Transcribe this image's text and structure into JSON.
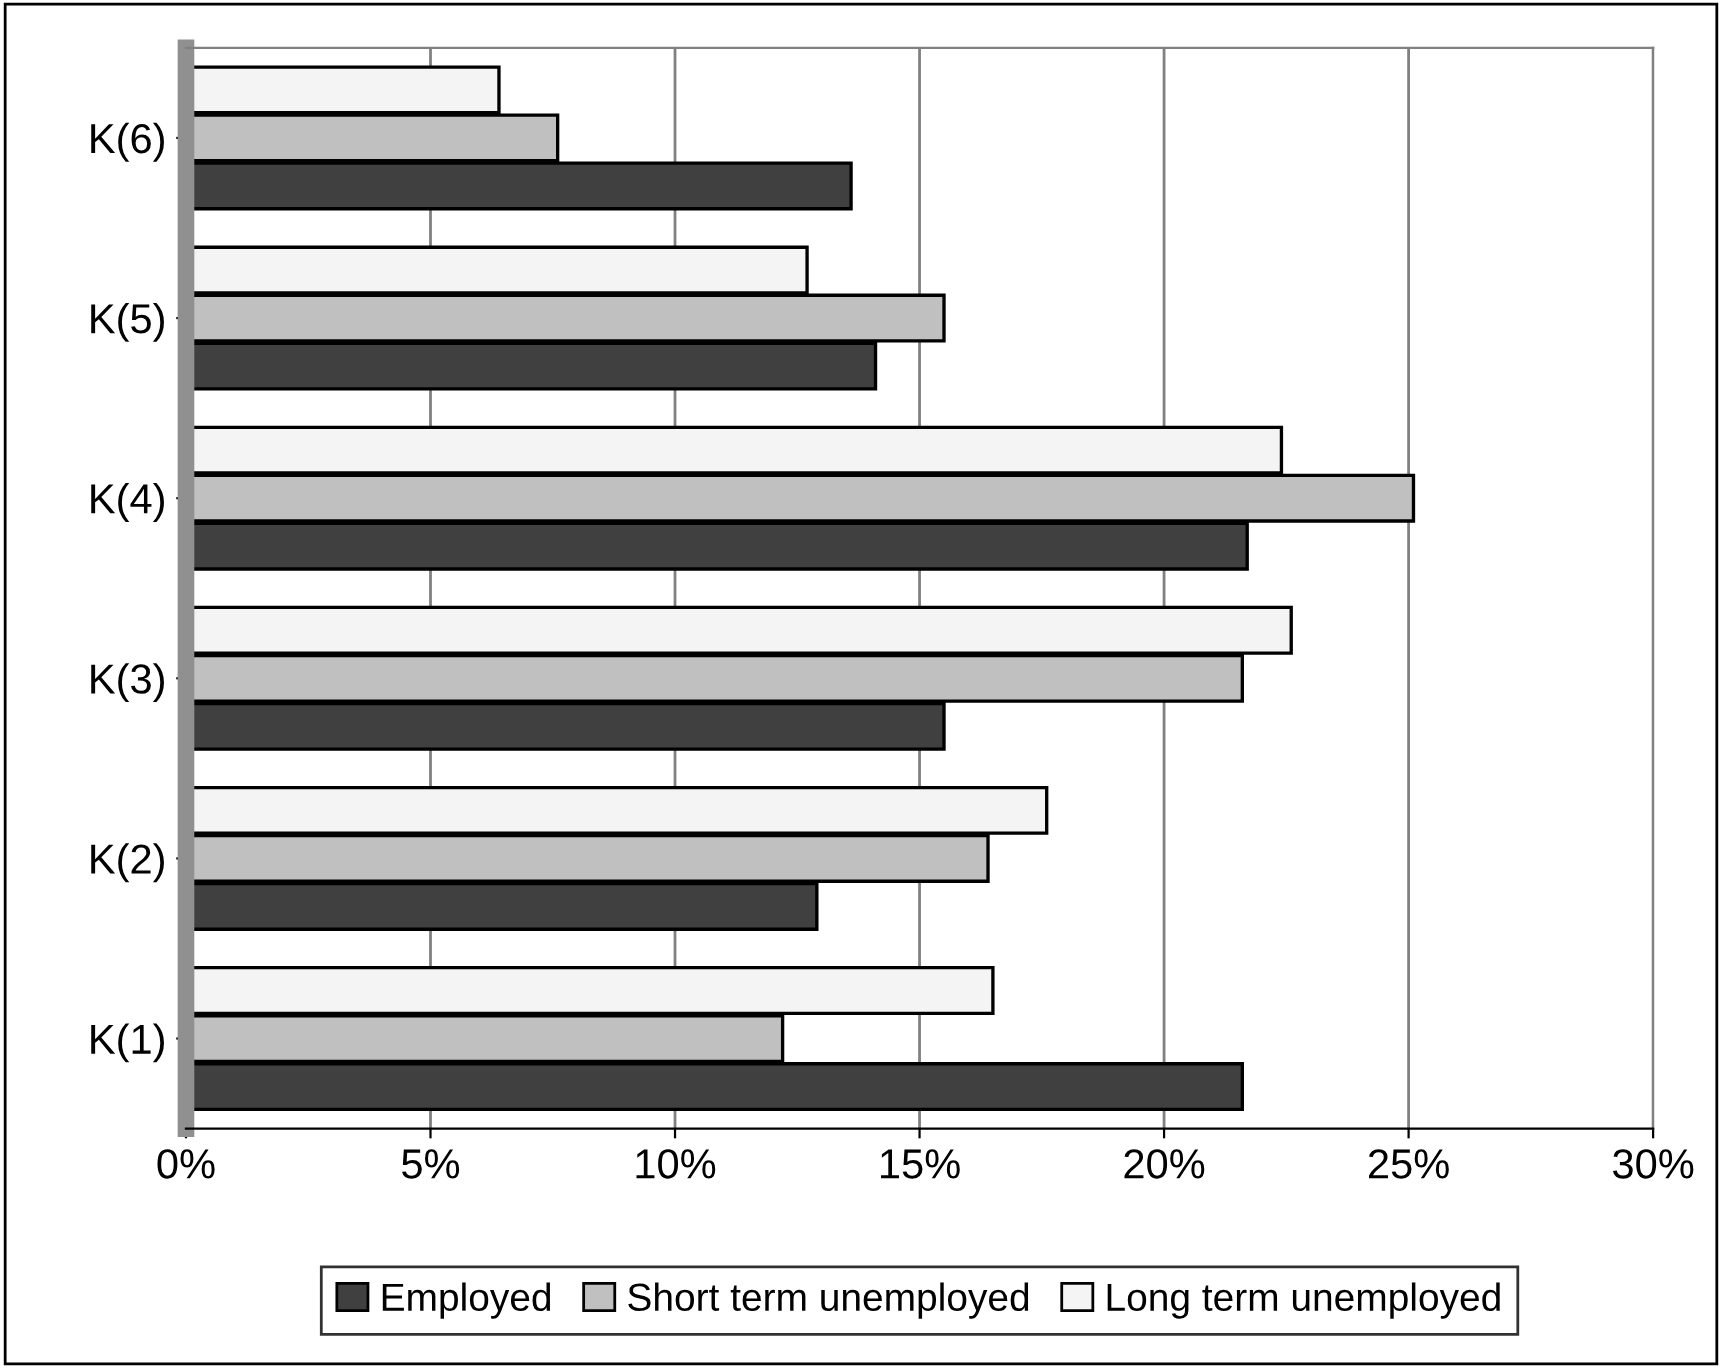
{
  "chart_data": {
    "type": "bar",
    "orientation": "horizontal",
    "categories": [
      "K(6)",
      "K(5)",
      "K(4)",
      "K(3)",
      "K(2)",
      "K(1)"
    ],
    "series": [
      {
        "name": "Employed",
        "color": "#404040",
        "values": [
          13.6,
          14.1,
          21.7,
          15.5,
          12.9,
          21.6
        ]
      },
      {
        "name": "Short term unemployed",
        "color": "#c0c0c0",
        "values": [
          7.6,
          15.5,
          25.1,
          21.6,
          16.4,
          12.2
        ]
      },
      {
        "name": "Long term unemployed",
        "color": "#f4f4f4",
        "values": [
          6.4,
          12.7,
          22.4,
          22.6,
          17.6,
          16.5
        ]
      }
    ],
    "xlim": [
      0,
      30
    ],
    "xticks": [
      {
        "value": 0,
        "label": "0%"
      },
      {
        "value": 5,
        "label": "5%"
      },
      {
        "value": 10,
        "label": "10%"
      },
      {
        "value": 15,
        "label": "15%"
      },
      {
        "value": 20,
        "label": "20%"
      },
      {
        "value": 25,
        "label": "25%"
      },
      {
        "value": 30,
        "label": "30%"
      }
    ],
    "grid": "x",
    "legend": "bottom"
  }
}
